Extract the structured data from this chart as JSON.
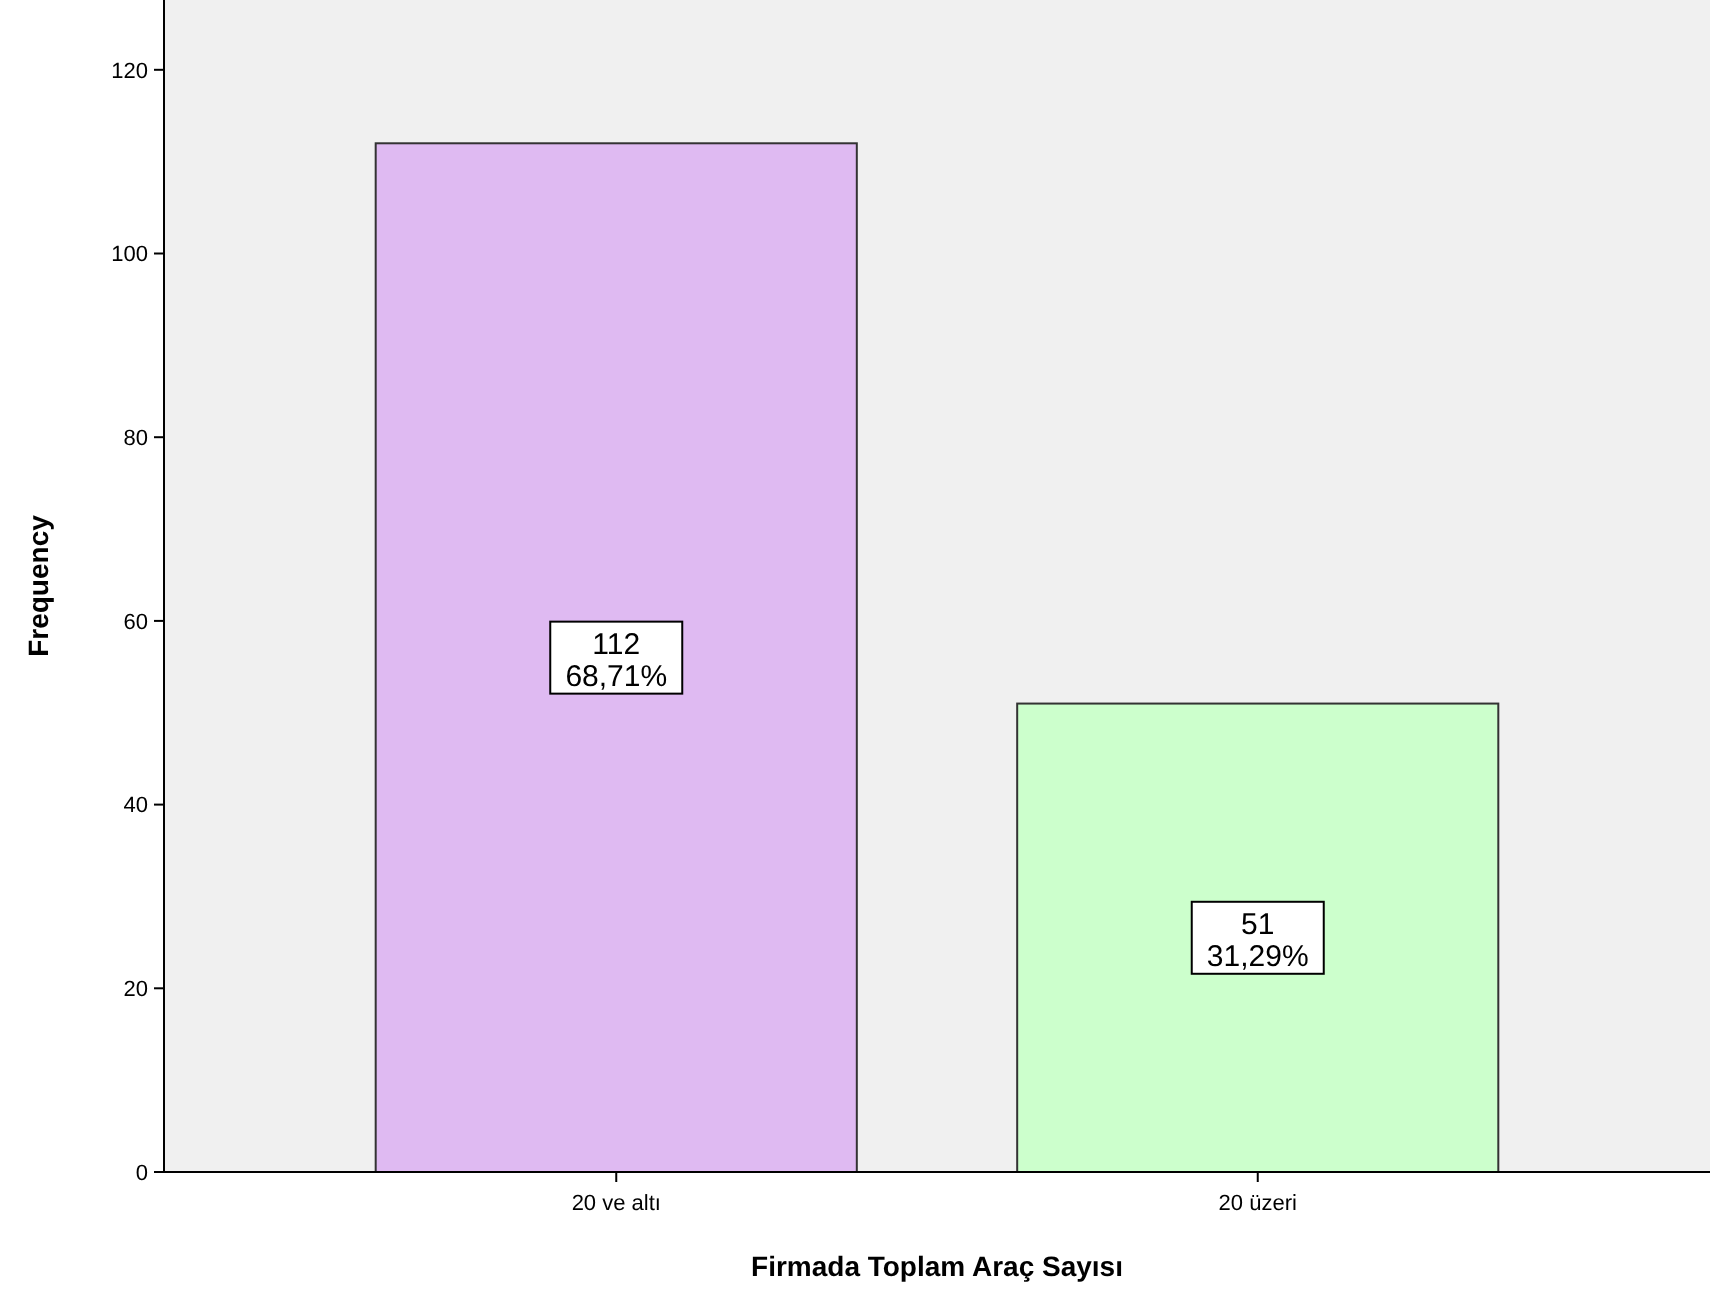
{
  "chart_data": {
    "type": "bar",
    "xlabel": "Firmada Toplam Araç Sayısı",
    "ylabel": "Frequency",
    "categories": [
      "20 ve altı",
      "20 üzeri"
    ],
    "values": [
      112,
      51
    ],
    "colors": [
      "#dfbaf2",
      "#ccffcc"
    ],
    "value_labels": [
      "112\n68,71%",
      "51\n31,29%"
    ],
    "ylim": [
      0,
      127.6
    ],
    "yticks": [
      0,
      20,
      40,
      60,
      80,
      100,
      120
    ],
    "grid": false
  }
}
